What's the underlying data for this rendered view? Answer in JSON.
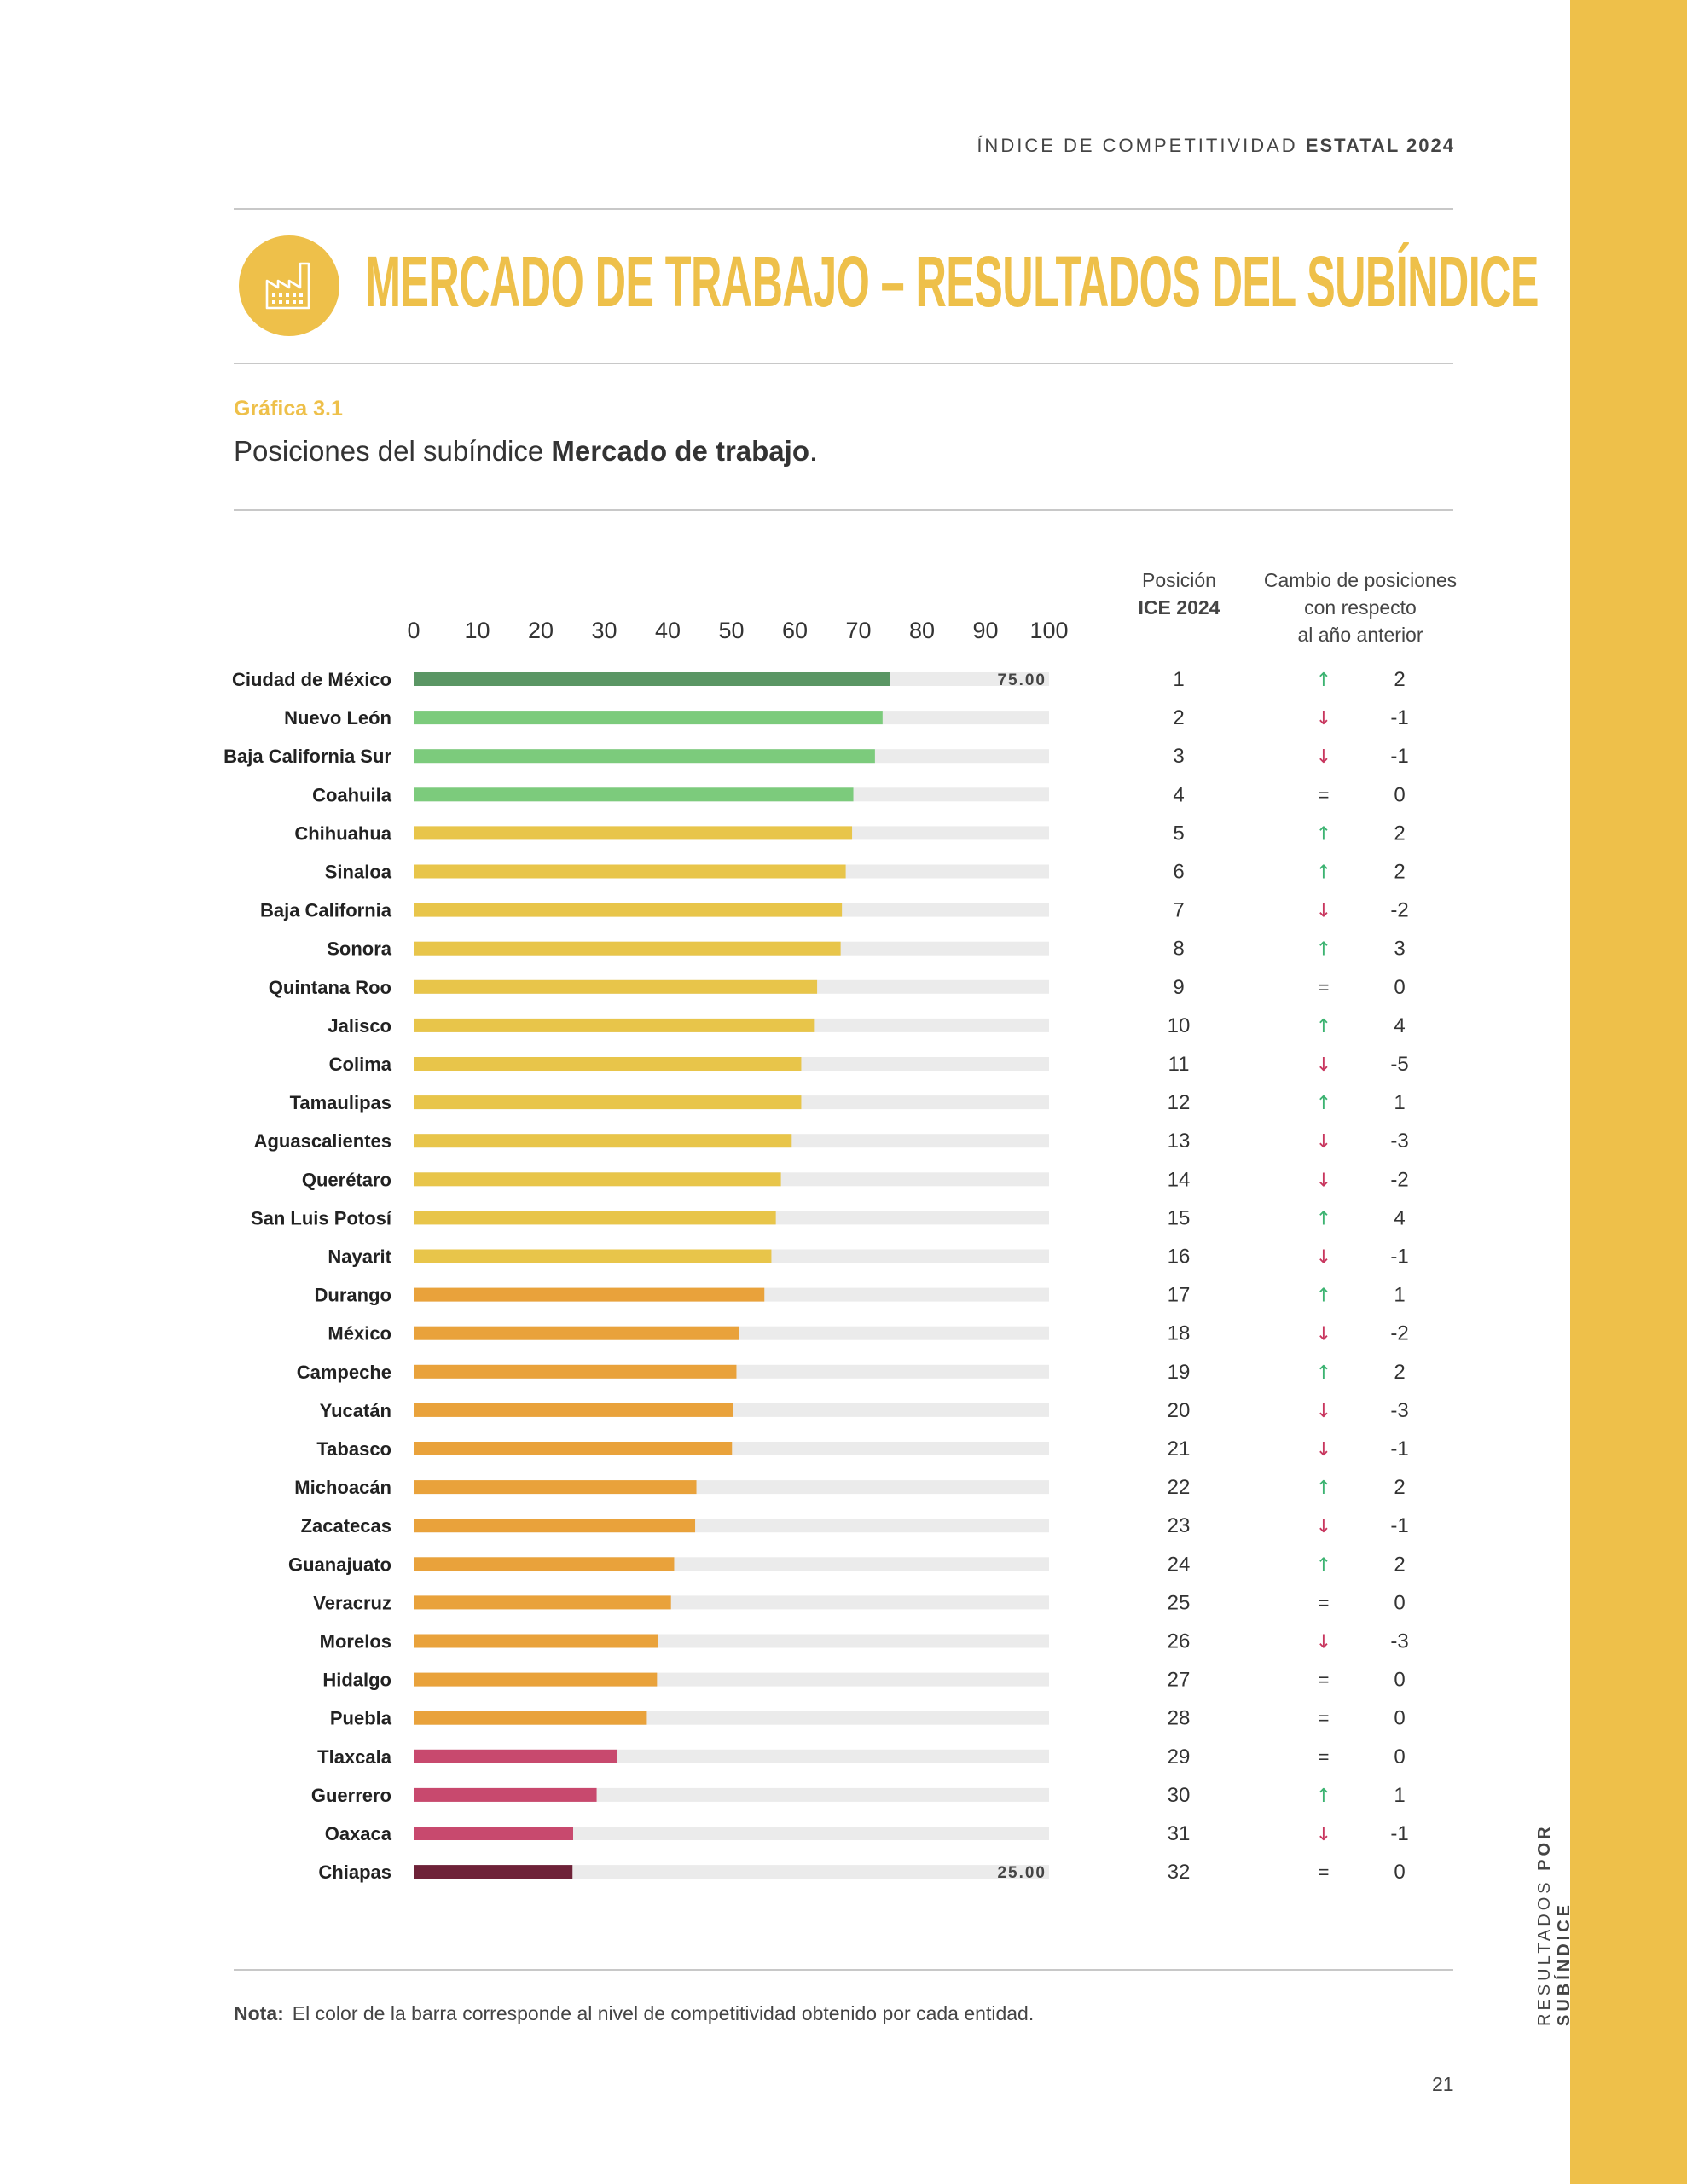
{
  "header": {
    "prefix": "ÍNDICE DE COMPETITIVIDAD",
    "bold": "ESTATAL 2024"
  },
  "title": "MERCADO DE TRABAJO – RESULTADOS DEL SUBÍNDICE",
  "graph_number": "Gráfica 3.1",
  "graph_subtitle_prefix": "Posiciones del subíndice ",
  "graph_subtitle_bold": "Mercado de trabajo",
  "graph_subtitle_suffix": ".",
  "columns": {
    "position_line1": "Posición",
    "position_line2": "ICE 2024",
    "change_line1": "Cambio de posiciones",
    "change_line2": "con respecto",
    "change_line3": "al año anterior"
  },
  "note_label": "Nota:",
  "note_text": "El color de la barra corresponde al nivel de competitividad obtenido por cada entidad.",
  "sidebar": {
    "prefix": "RESULTADOS",
    "bold": "POR SUBÍNDICE"
  },
  "page_number": "21",
  "colors": {
    "accent": "#EEC04A",
    "dark_green": "#5A9664",
    "light_green": "#7CCB7C",
    "yellow": "#E8C54A",
    "orange": "#E9A23B",
    "pink": "#C8496E",
    "maroon": "#6E2238",
    "track": "#EBEBEB",
    "up": "#3CB371",
    "down": "#C8365E"
  },
  "chart_data": {
    "type": "bar",
    "orientation": "horizontal",
    "xlim": [
      0,
      100
    ],
    "xticks": [
      "0",
      "10",
      "20",
      "30",
      "40",
      "50",
      "60",
      "70",
      "80",
      "90",
      "100"
    ],
    "max_label": "75.00",
    "min_label": "25.00",
    "rows": [
      {
        "state": "Ciudad de México",
        "value": 75.0,
        "color": "dark_green",
        "pos": "1",
        "dir": "up",
        "chg": "2"
      },
      {
        "state": "Nuevo León",
        "value": 73.8,
        "color": "light_green",
        "pos": "2",
        "dir": "down",
        "chg": "-1"
      },
      {
        "state": "Baja California Sur",
        "value": 72.6,
        "color": "light_green",
        "pos": "3",
        "dir": "down",
        "chg": "-1"
      },
      {
        "state": "Coahuila",
        "value": 69.2,
        "color": "light_green",
        "pos": "4",
        "dir": "eq",
        "chg": "0"
      },
      {
        "state": "Chihuahua",
        "value": 69.0,
        "color": "yellow",
        "pos": "5",
        "dir": "up",
        "chg": "2"
      },
      {
        "state": "Sinaloa",
        "value": 68.0,
        "color": "yellow",
        "pos": "6",
        "dir": "up",
        "chg": "2"
      },
      {
        "state": "Baja California",
        "value": 67.4,
        "color": "yellow",
        "pos": "7",
        "dir": "down",
        "chg": "-2"
      },
      {
        "state": "Sonora",
        "value": 67.2,
        "color": "yellow",
        "pos": "8",
        "dir": "up",
        "chg": "3"
      },
      {
        "state": "Quintana Roo",
        "value": 63.5,
        "color": "yellow",
        "pos": "9",
        "dir": "eq",
        "chg": "0"
      },
      {
        "state": "Jalisco",
        "value": 63.0,
        "color": "yellow",
        "pos": "10",
        "dir": "up",
        "chg": "4"
      },
      {
        "state": "Colima",
        "value": 61.0,
        "color": "yellow",
        "pos": "11",
        "dir": "down",
        "chg": "-5"
      },
      {
        "state": "Tamaulipas",
        "value": 61.0,
        "color": "yellow",
        "pos": "12",
        "dir": "up",
        "chg": "1"
      },
      {
        "state": "Aguascalientes",
        "value": 59.5,
        "color": "yellow",
        "pos": "13",
        "dir": "down",
        "chg": "-3"
      },
      {
        "state": "Querétaro",
        "value": 57.8,
        "color": "yellow",
        "pos": "14",
        "dir": "down",
        "chg": "-2"
      },
      {
        "state": "San Luis Potosí",
        "value": 57.0,
        "color": "yellow",
        "pos": "15",
        "dir": "up",
        "chg": "4"
      },
      {
        "state": "Nayarit",
        "value": 56.3,
        "color": "yellow",
        "pos": "16",
        "dir": "down",
        "chg": "-1"
      },
      {
        "state": "Durango",
        "value": 55.2,
        "color": "orange",
        "pos": "17",
        "dir": "up",
        "chg": "1"
      },
      {
        "state": "México",
        "value": 51.2,
        "color": "orange",
        "pos": "18",
        "dir": "down",
        "chg": "-2"
      },
      {
        "state": "Campeche",
        "value": 50.8,
        "color": "orange",
        "pos": "19",
        "dir": "up",
        "chg": "2"
      },
      {
        "state": "Yucatán",
        "value": 50.2,
        "color": "orange",
        "pos": "20",
        "dir": "down",
        "chg": "-3"
      },
      {
        "state": "Tabasco",
        "value": 50.1,
        "color": "orange",
        "pos": "21",
        "dir": "down",
        "chg": "-1"
      },
      {
        "state": "Michoacán",
        "value": 44.5,
        "color": "orange",
        "pos": "22",
        "dir": "up",
        "chg": "2"
      },
      {
        "state": "Zacatecas",
        "value": 44.3,
        "color": "orange",
        "pos": "23",
        "dir": "down",
        "chg": "-1"
      },
      {
        "state": "Guanajuato",
        "value": 41.0,
        "color": "orange",
        "pos": "24",
        "dir": "up",
        "chg": "2"
      },
      {
        "state": "Veracruz",
        "value": 40.5,
        "color": "orange",
        "pos": "25",
        "dir": "eq",
        "chg": "0"
      },
      {
        "state": "Morelos",
        "value": 38.5,
        "color": "orange",
        "pos": "26",
        "dir": "down",
        "chg": "-3"
      },
      {
        "state": "Hidalgo",
        "value": 38.3,
        "color": "orange",
        "pos": "27",
        "dir": "eq",
        "chg": "0"
      },
      {
        "state": "Puebla",
        "value": 36.7,
        "color": "orange",
        "pos": "28",
        "dir": "eq",
        "chg": "0"
      },
      {
        "state": "Tlaxcala",
        "value": 32.0,
        "color": "pink",
        "pos": "29",
        "dir": "eq",
        "chg": "0"
      },
      {
        "state": "Guerrero",
        "value": 28.8,
        "color": "pink",
        "pos": "30",
        "dir": "up",
        "chg": "1"
      },
      {
        "state": "Oaxaca",
        "value": 25.1,
        "color": "pink",
        "pos": "31",
        "dir": "down",
        "chg": "-1"
      },
      {
        "state": "Chiapas",
        "value": 25.0,
        "color": "maroon",
        "pos": "32",
        "dir": "eq",
        "chg": "0"
      }
    ]
  }
}
